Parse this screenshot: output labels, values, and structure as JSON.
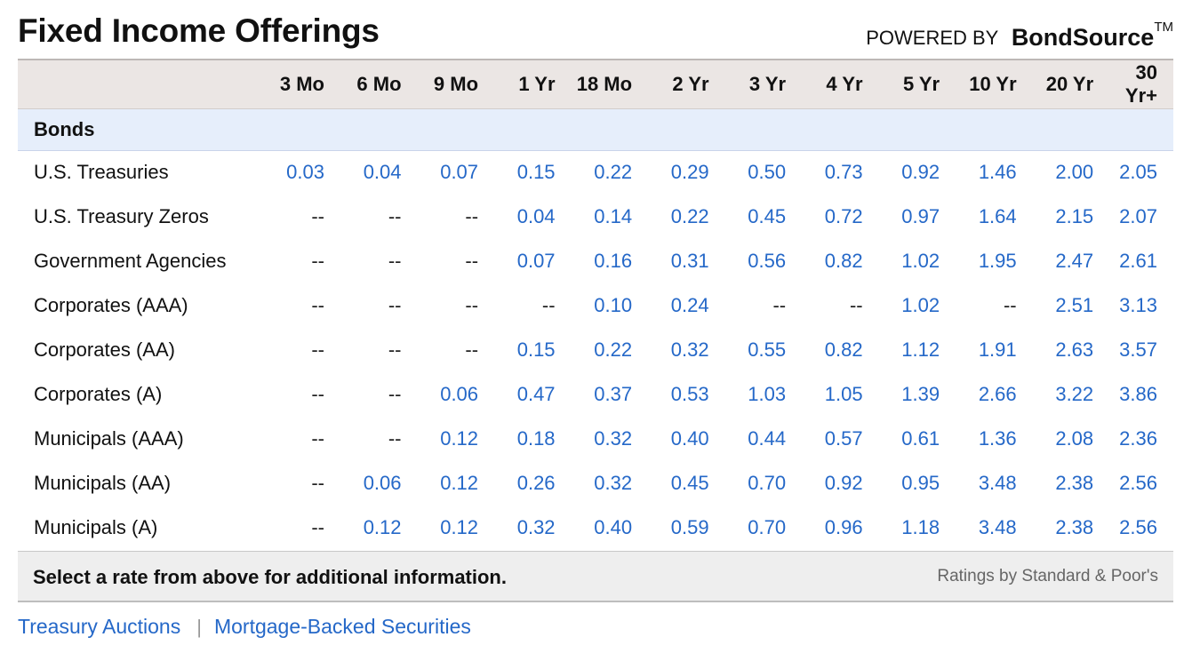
{
  "header": {
    "title": "Fixed Income Offerings",
    "powered_by": "POWERED BY",
    "brand": "BondSource",
    "trademark": "TM"
  },
  "table": {
    "columns": [
      "3 Mo",
      "6 Mo",
      "9 Mo",
      "1 Yr",
      "18 Mo",
      "2 Yr",
      "3 Yr",
      "4 Yr",
      "5 Yr",
      "10 Yr",
      "20 Yr",
      "30 Yr+"
    ],
    "section": "Bonds",
    "rows": [
      {
        "label": "U.S. Treasuries",
        "values": [
          "0.03",
          "0.04",
          "0.07",
          "0.15",
          "0.22",
          "0.29",
          "0.50",
          "0.73",
          "0.92",
          "1.46",
          "2.00",
          "2.05"
        ]
      },
      {
        "label": "U.S. Treasury Zeros",
        "values": [
          "--",
          "--",
          "--",
          "0.04",
          "0.14",
          "0.22",
          "0.45",
          "0.72",
          "0.97",
          "1.64",
          "2.15",
          "2.07"
        ]
      },
      {
        "label": "Government Agencies",
        "values": [
          "--",
          "--",
          "--",
          "0.07",
          "0.16",
          "0.31",
          "0.56",
          "0.82",
          "1.02",
          "1.95",
          "2.47",
          "2.61"
        ]
      },
      {
        "label": "Corporates (AAA)",
        "values": [
          "--",
          "--",
          "--",
          "--",
          "0.10",
          "0.24",
          "--",
          "--",
          "1.02",
          "--",
          "2.51",
          "3.13"
        ]
      },
      {
        "label": "Corporates (AA)",
        "values": [
          "--",
          "--",
          "--",
          "0.15",
          "0.22",
          "0.32",
          "0.55",
          "0.82",
          "1.12",
          "1.91",
          "2.63",
          "3.57"
        ]
      },
      {
        "label": "Corporates (A)",
        "values": [
          "--",
          "--",
          "0.06",
          "0.47",
          "0.37",
          "0.53",
          "1.03",
          "1.05",
          "1.39",
          "2.66",
          "3.22",
          "3.86"
        ]
      },
      {
        "label": "Municipals (AAA)",
        "values": [
          "--",
          "--",
          "0.12",
          "0.18",
          "0.32",
          "0.40",
          "0.44",
          "0.57",
          "0.61",
          "1.36",
          "2.08",
          "2.36"
        ]
      },
      {
        "label": "Municipals (AA)",
        "values": [
          "--",
          "0.06",
          "0.12",
          "0.26",
          "0.32",
          "0.45",
          "0.70",
          "0.92",
          "0.95",
          "3.48",
          "2.38",
          "2.56"
        ]
      },
      {
        "label": "Municipals (A)",
        "values": [
          "--",
          "0.12",
          "0.12",
          "0.32",
          "0.40",
          "0.59",
          "0.70",
          "0.96",
          "1.18",
          "3.48",
          "2.38",
          "2.56"
        ]
      }
    ]
  },
  "footer": {
    "note": "Select a rate from above for additional information.",
    "ratings_credit": "Ratings by Standard & Poor's"
  },
  "links": [
    "Treasury Auctions",
    "Mortgage-Backed Securities"
  ],
  "link_separator": "|",
  "colors": {
    "link_blue": "#2568c8",
    "header_bg": "#ebe6e4",
    "section_bg": "#e6eefb",
    "footer_bg": "#eeeeee"
  }
}
